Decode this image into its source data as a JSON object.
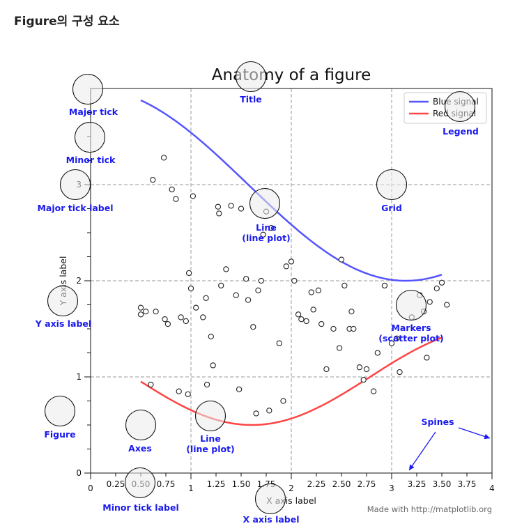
{
  "page": {
    "heading": "Figure의 구성 요소"
  },
  "chart_data": {
    "type": "line",
    "title": "Anatomy of a figure",
    "xlabel": "X axis label",
    "ylabel": "Y axis label",
    "xlim": [
      0,
      4
    ],
    "ylim": [
      0,
      4
    ],
    "grid": true,
    "legend_position": "top-right",
    "x_major_ticks": [
      0,
      1,
      2,
      3,
      4
    ],
    "x_minor_ticks": [
      0.25,
      0.5,
      0.75,
      1.25,
      1.5,
      1.75,
      2.25,
      2.5,
      2.75,
      3.25,
      3.5,
      3.75
    ],
    "y_major_ticks": [
      0,
      1,
      2,
      3
    ],
    "x_major_tick_labels": [
      "0",
      "1",
      "2",
      "3",
      "4"
    ],
    "x_minor_tick_labels": [
      "0.25",
      "0.50",
      "0.75",
      "1.25",
      "1.50",
      "1.75",
      "2.25",
      "2.50",
      "2.75",
      "3.25",
      "3.50",
      "3.75"
    ],
    "y_major_tick_labels": [
      "0",
      "1",
      "2",
      "3"
    ],
    "series": [
      {
        "name": "Blue signal",
        "color": "#5555ff",
        "formula": "y = 3 + cos(x)",
        "x_range": [
          0.5,
          3.5
        ]
      },
      {
        "name": "Red signal",
        "color": "#ff4444",
        "formula": "y = 1 + cos(1 + x/0.75)/2",
        "x_range": [
          0.5,
          3.5
        ]
      }
    ],
    "markers": {
      "x": [
        0.73,
        0.62,
        0.81,
        0.85,
        0.98,
        1.28,
        1.27,
        1.4,
        1.5,
        1.75,
        0.5,
        0.5,
        0.55,
        0.65,
        0.74,
        0.77,
        0.9,
        0.95,
        1.0,
        1.05,
        1.12,
        1.15,
        1.2,
        1.22,
        1.3,
        1.35,
        1.45,
        1.55,
        1.57,
        1.62,
        1.67,
        1.7,
        1.72,
        1.8,
        1.88,
        1.95,
        2.0,
        2.03,
        2.07,
        2.1,
        2.15,
        2.2,
        2.22,
        2.27,
        2.3,
        2.35,
        2.42,
        2.48,
        2.5,
        2.53,
        2.58,
        2.6,
        2.62,
        2.68,
        2.72,
        2.75,
        2.82,
        2.86,
        2.93,
        3.0,
        3.05,
        3.08,
        3.2,
        3.32,
        3.38,
        3.45,
        3.5,
        3.55,
        0.6,
        0.88,
        1.02,
        1.16,
        1.48,
        1.65,
        1.78,
        1.92,
        0.97,
        3.28,
        3.35
      ],
      "y": [
        3.28,
        3.05,
        2.95,
        2.85,
        2.08,
        2.7,
        2.77,
        2.78,
        2.75,
        2.72,
        1.72,
        1.65,
        1.68,
        1.68,
        1.6,
        1.55,
        1.62,
        1.58,
        1.92,
        1.72,
        1.62,
        1.82,
        1.42,
        1.12,
        1.95,
        2.12,
        1.85,
        2.02,
        1.8,
        1.52,
        1.9,
        2.0,
        2.48,
        2.55,
        1.35,
        2.15,
        2.2,
        2.0,
        1.65,
        1.6,
        1.58,
        1.88,
        1.7,
        1.9,
        1.55,
        1.08,
        1.5,
        1.3,
        2.22,
        1.95,
        1.5,
        1.68,
        1.5,
        1.1,
        0.97,
        1.08,
        0.85,
        1.25,
        1.95,
        1.35,
        1.4,
        1.05,
        1.62,
        1.68,
        1.78,
        1.92,
        1.98,
        1.75,
        0.92,
        0.85,
        2.88,
        0.92,
        0.87,
        0.62,
        0.65,
        0.75,
        0.82,
        1.85,
        1.2
      ]
    },
    "annotations": [
      "Major tick",
      "Minor tick",
      "Major tick label",
      "Title",
      "Legend",
      "Grid",
      "Line\n(line plot)",
      "Y axis label",
      "Markers\n(scatter plot)",
      "Figure",
      "Axes",
      "Line\n(line plot)",
      "Spines",
      "Minor tick label",
      "X axis label"
    ],
    "credit": "Made with http://matplotlib.org"
  }
}
